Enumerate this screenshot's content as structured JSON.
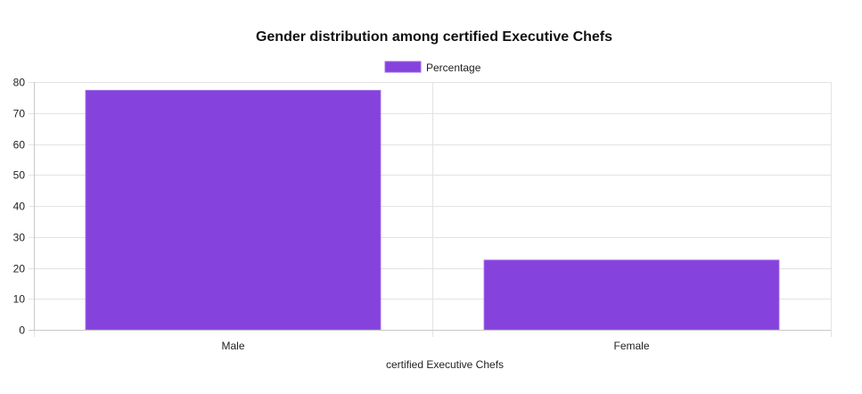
{
  "chart_data": {
    "type": "bar",
    "title": "Gender distribution among certified Executive Chefs",
    "xlabel": "certified Executive Chefs",
    "ylabel": "",
    "categories": [
      "Male",
      "Female"
    ],
    "series": [
      {
        "name": "Percentage",
        "values": [
          77.3,
          22.5
        ],
        "color": "#8642dc",
        "border_color": "#9f6be6"
      }
    ],
    "ylim": [
      0,
      80
    ],
    "y_ticks": [
      0,
      10,
      20,
      30,
      40,
      50,
      60,
      70,
      80
    ],
    "grid": true,
    "legend_position": "top-center"
  }
}
